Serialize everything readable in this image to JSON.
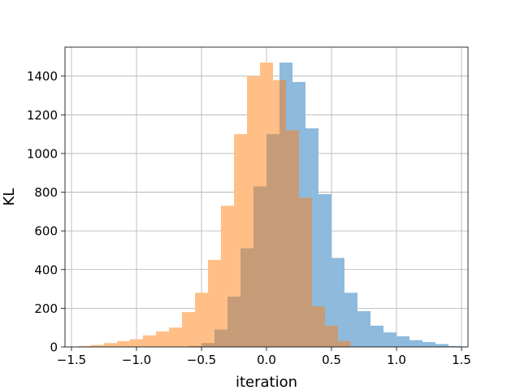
{
  "chart_data": {
    "type": "bar",
    "title": "",
    "xlabel": "iteration",
    "ylabel": "KL",
    "xlim": [
      -1.55,
      1.55
    ],
    "ylim": [
      0,
      1550
    ],
    "x_ticks": [
      -1.5,
      -1.0,
      -0.5,
      0.0,
      0.5,
      1.0,
      1.5
    ],
    "x_tick_labels": [
      "−1.5",
      "−1.0",
      "−0.5",
      "0.0",
      "0.5",
      "1.0",
      "1.5"
    ],
    "y_ticks": [
      0,
      200,
      400,
      600,
      800,
      1000,
      1200,
      1400
    ],
    "y_tick_labels": [
      "0",
      "200",
      "400",
      "600",
      "800",
      "1000",
      "1200",
      "1400"
    ],
    "grid": true,
    "legend": false,
    "overlap_color": "#c69c78",
    "series": [
      {
        "color": "#8dbadd",
        "bin_edges": [
          -0.6,
          -0.5,
          -0.4,
          -0.3,
          -0.2,
          -0.1,
          0.0,
          0.1,
          0.2,
          0.3,
          0.4,
          0.5,
          0.6,
          0.7,
          0.8,
          0.9,
          1.0,
          1.1,
          1.2,
          1.3,
          1.4,
          1.5
        ],
        "values": [
          5,
          20,
          90,
          260,
          510,
          830,
          1100,
          1470,
          1370,
          1130,
          790,
          460,
          280,
          185,
          110,
          75,
          55,
          35,
          25,
          15,
          5
        ]
      },
      {
        "color": "#ffbf86",
        "bin_edges": [
          -1.45,
          -1.35,
          -1.25,
          -1.15,
          -1.05,
          -0.95,
          -0.85,
          -0.75,
          -0.65,
          -0.55,
          -0.45,
          -0.35,
          -0.25,
          -0.15,
          -0.05,
          0.05,
          0.15,
          0.25,
          0.35,
          0.45,
          0.55,
          0.65
        ],
        "values": [
          5,
          10,
          20,
          30,
          40,
          60,
          80,
          100,
          180,
          280,
          450,
          730,
          1100,
          1400,
          1470,
          1380,
          1120,
          770,
          210,
          110,
          30
        ]
      }
    ]
  }
}
